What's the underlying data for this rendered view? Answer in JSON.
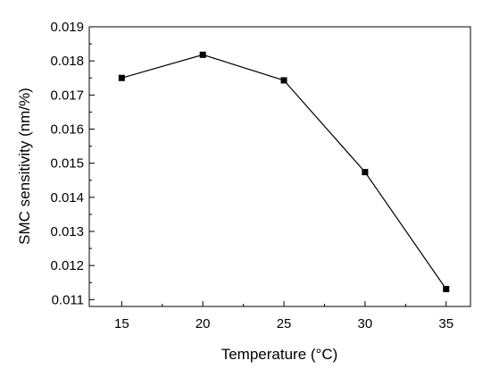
{
  "chart_data": {
    "type": "line",
    "title": "",
    "xlabel": "Temperature (°C)",
    "ylabel": "SMC sensitivity (nm/%)",
    "xlim": [
      13,
      36.5
    ],
    "ylim": [
      0.0108,
      0.019
    ],
    "x_ticks": [
      15,
      20,
      25,
      30,
      35
    ],
    "x_tick_labels": [
      "15",
      "20",
      "25",
      "30",
      "35"
    ],
    "y_ticks": [
      0.011,
      0.012,
      0.013,
      0.014,
      0.015,
      0.016,
      0.017,
      0.018,
      0.019
    ],
    "y_tick_labels": [
      "0.011",
      "0.012",
      "0.013",
      "0.014",
      "0.015",
      "0.016",
      "0.017",
      "0.018",
      "0.019"
    ],
    "grid": false,
    "legend": "none",
    "series": [
      {
        "x": [
          15,
          20,
          25,
          30,
          35
        ],
        "y": [
          0.0175,
          0.01818,
          0.01743,
          0.01474,
          0.01131
        ],
        "marker": "square",
        "color": "#000000"
      }
    ]
  }
}
